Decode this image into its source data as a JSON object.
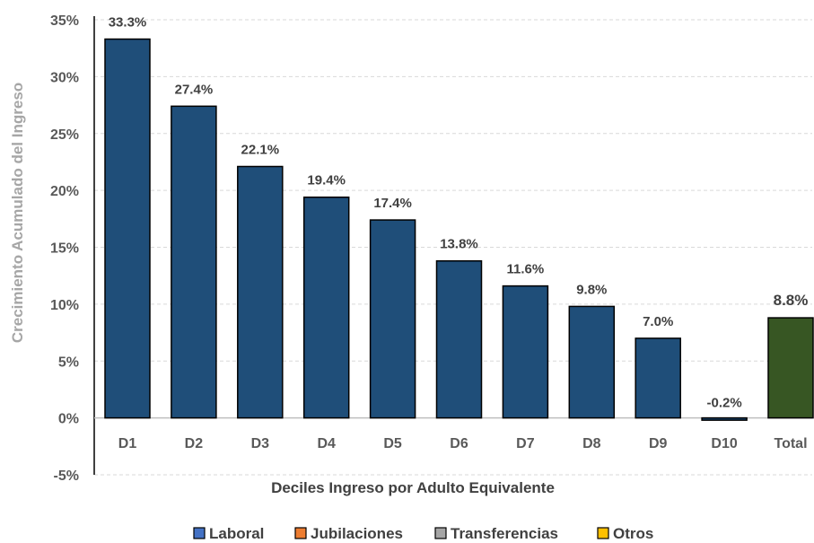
{
  "chart_data": {
    "type": "bar",
    "title": "",
    "xlabel": "Deciles Ingreso por Adulto Equivalente",
    "ylabel": "Crecimiento Acumulado del Ingreso",
    "ylim": [
      -5,
      35
    ],
    "yticks": [
      "35%",
      "30%",
      "25%",
      "20%",
      "15%",
      "10%",
      "5%",
      "0%",
      "-5%"
    ],
    "ytick_values": [
      35,
      30,
      25,
      20,
      15,
      10,
      5,
      0,
      -5
    ],
    "grid": "horizontal dashed",
    "categories": [
      "D1",
      "D2",
      "D3",
      "D4",
      "D5",
      "D6",
      "D7",
      "D8",
      "D9",
      "D10",
      "Total"
    ],
    "values": [
      33.3,
      27.4,
      22.1,
      19.4,
      17.4,
      13.8,
      11.6,
      9.8,
      7.0,
      -0.2,
      8.8
    ],
    "data_labels": [
      "33.3%",
      "27.4%",
      "22.1%",
      "19.4%",
      "17.4%",
      "13.8%",
      "11.6%",
      "9.8%",
      "7.0%",
      "-0.2%",
      "8.8%"
    ],
    "bar_colors": [
      "#1f4e79",
      "#1f4e79",
      "#1f4e79",
      "#1f4e79",
      "#1f4e79",
      "#1f4e79",
      "#1f4e79",
      "#1f4e79",
      "#1f4e79",
      "#1f4e79",
      "#375623"
    ],
    "label_colors": [
      "#404040",
      "#404040",
      "#404040",
      "#404040",
      "#404040",
      "#404040",
      "#404040",
      "#404040",
      "#404040",
      "#404040",
      "#548235"
    ],
    "legend": {
      "placement": "bottom",
      "items": [
        {
          "name": "Laboral",
          "color": "#4472c4"
        },
        {
          "name": "Jubilaciones",
          "color": "#ed7d31"
        },
        {
          "name": "Transferencias",
          "color": "#a5a5a5"
        },
        {
          "name": "Otros",
          "color": "#ffc000"
        }
      ]
    }
  }
}
